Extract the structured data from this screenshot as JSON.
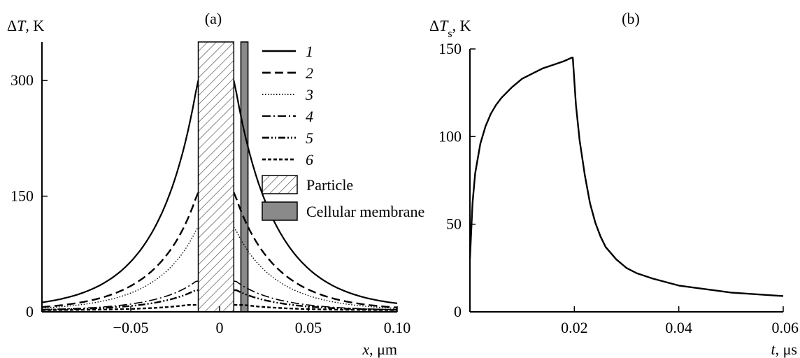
{
  "chart_data": [
    {
      "panel_label": "(a)",
      "type": "line",
      "ylabel_sym": "ΔT",
      "ylabel_unit": ", K",
      "xlabel_sym": "x",
      "xlabel_unit": ", μm",
      "xlim": [
        -0.1,
        0.1
      ],
      "ylim": [
        0,
        350
      ],
      "xticks": [
        -0.05,
        0,
        0.05,
        0.1
      ],
      "xtick_labels": [
        "−0.05",
        "0",
        "0.05",
        "0.10"
      ],
      "yticks": [
        0,
        150,
        300
      ],
      "ytick_labels": [
        "0",
        "150",
        "300"
      ],
      "regions": [
        {
          "name": "Particle",
          "x0": -0.012,
          "x1": 0.008
        },
        {
          "name": "Cellular membrane",
          "x0": 0.012,
          "x1": 0.016
        }
      ],
      "series": [
        {
          "name": "1",
          "peak": 300,
          "style": "solid"
        },
        {
          "name": "2",
          "peak": 155,
          "style": "dashed"
        },
        {
          "name": "3",
          "peak": 110,
          "style": "dotted"
        },
        {
          "name": "4",
          "peak": 40,
          "style": "dashdot"
        },
        {
          "name": "5",
          "peak": 28,
          "style": "dashdotdot"
        },
        {
          "name": "6",
          "peak": 9,
          "style": "shortdash"
        }
      ],
      "legend_region_labels": [
        "Particle",
        "Cellular membrane"
      ]
    },
    {
      "panel_label": "(b)",
      "type": "line",
      "ylabel_sym": "ΔT",
      "ylabel_sub": "s",
      "ylabel_unit": ", K",
      "xlabel_sym": "t",
      "xlabel_unit": ", μs",
      "xlim": [
        0,
        0.06
      ],
      "ylim": [
        0,
        150
      ],
      "xticks": [
        0.02,
        0.04,
        0.06
      ],
      "xtick_labels": [
        "0.02",
        "0.04",
        "0.06"
      ],
      "yticks": [
        0,
        50,
        100,
        150
      ],
      "ytick_labels": [
        "0",
        "50",
        "100",
        "150"
      ],
      "series": [
        {
          "x": [
            0,
            0.0005,
            0.001,
            0.002,
            0.003,
            0.004,
            0.005,
            0.006,
            0.008,
            0.01,
            0.012,
            0.014,
            0.016,
            0.018,
            0.0195,
            0.0197,
            0.0203,
            0.021,
            0.022,
            0.023,
            0.024,
            0.025,
            0.026,
            0.028,
            0.03,
            0.032,
            0.035,
            0.04,
            0.045,
            0.05,
            0.055,
            0.06
          ],
          "y": [
            30,
            62,
            79,
            96,
            106,
            113,
            118,
            122,
            128,
            133,
            136,
            139,
            141,
            143,
            145,
            145,
            118,
            98,
            78,
            62,
            51,
            43,
            37,
            30,
            25,
            22,
            19,
            15,
            13,
            11,
            10,
            9
          ]
        }
      ]
    }
  ]
}
